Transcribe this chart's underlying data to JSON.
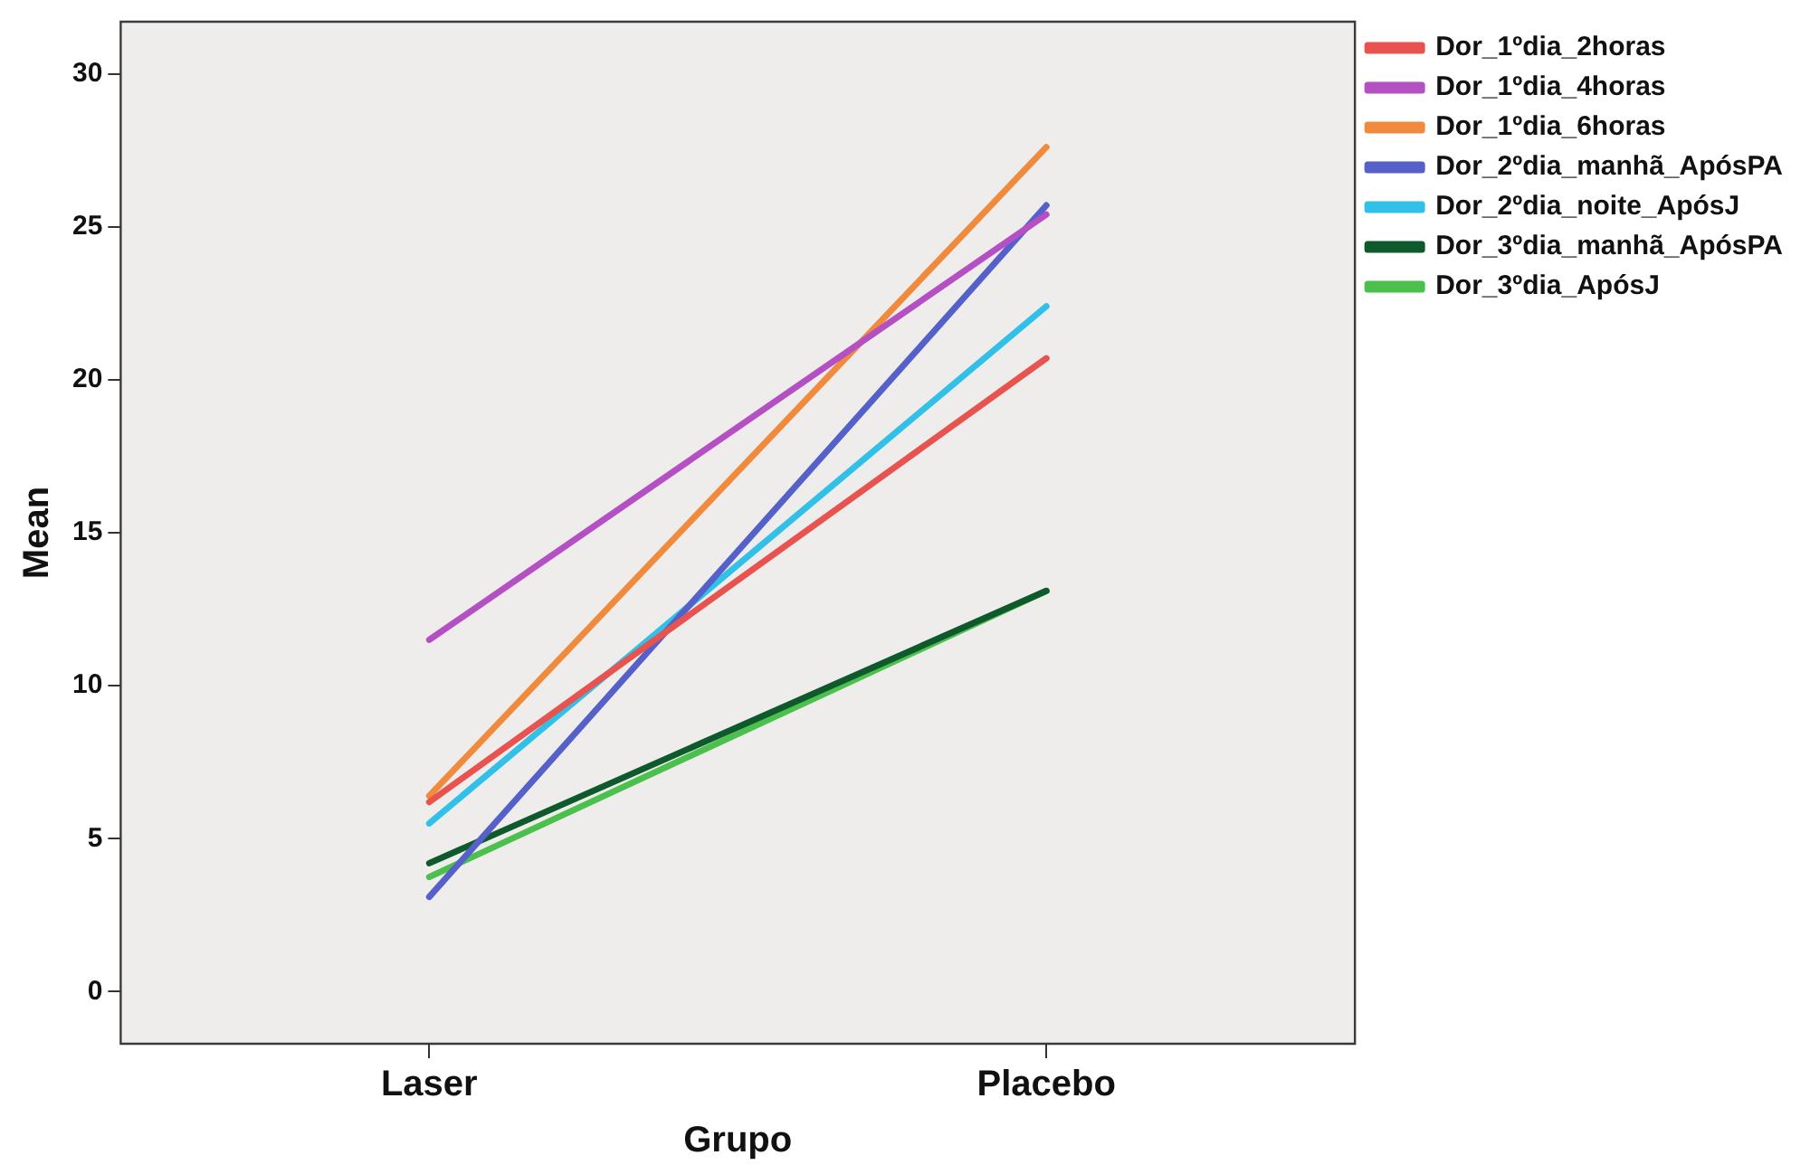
{
  "chart_data": {
    "type": "line",
    "xlabel": "Grupo",
    "ylabel": "Mean",
    "categories": [
      "Laser",
      "Placebo"
    ],
    "ylim": [
      -1.7,
      31.7
    ],
    "yticks": [
      0,
      5,
      10,
      15,
      20,
      25,
      30
    ],
    "grid": false,
    "legend": "right",
    "marker": "none",
    "line_style": "solid",
    "series": [
      {
        "name": "Dor_1ºdia_2horas",
        "color": "#e8534f",
        "values": [
          6.2,
          20.7
        ]
      },
      {
        "name": "Dor_1ºdia_4horas",
        "color": "#b550c4",
        "values": [
          11.5,
          25.4
        ]
      },
      {
        "name": "Dor_1ºdia_6horas",
        "color": "#f08a3c",
        "values": [
          6.4,
          27.6
        ]
      },
      {
        "name": "Dor_2ºdia_manhã_ApósPA",
        "color": "#5560c8",
        "values": [
          3.1,
          25.7
        ]
      },
      {
        "name": "Dor_2ºdia_noite_ApósJ",
        "color": "#30c0e8",
        "values": [
          5.5,
          22.4
        ]
      },
      {
        "name": "Dor_3ºdia_manhã_ApósPA",
        "color": "#0f5a2c",
        "values": [
          4.2,
          13.1
        ]
      },
      {
        "name": "Dor_3ºdia_ApósJ",
        "color": "#4cc04c",
        "values": [
          3.75,
          13.1
        ]
      }
    ]
  }
}
